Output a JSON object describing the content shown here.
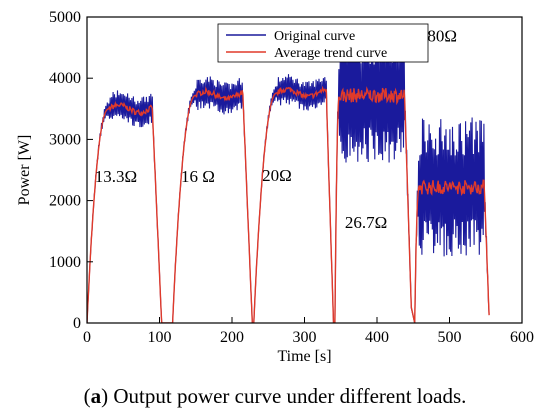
{
  "chart_data": {
    "type": "line",
    "title": "",
    "xlabel": "Time [s]",
    "ylabel": "Power [W]",
    "xlim": [
      0,
      600
    ],
    "ylim": [
      0,
      5000
    ],
    "x_ticks": [
      0,
      100,
      200,
      300,
      400,
      500,
      600
    ],
    "y_ticks": [
      0,
      1000,
      2000,
      3000,
      4000,
      5000
    ],
    "grid": false,
    "legend_position": "top-center",
    "series": [
      {
        "name": "Original curve",
        "color": "#1a1a9c"
      },
      {
        "name": "Average trend curve",
        "color": "#e03a2a"
      }
    ],
    "segments": [
      {
        "load": "13.3Ω",
        "start": 0,
        "rise_end": 30,
        "plateau_end": 90,
        "end": 103,
        "level": 3500,
        "amplitude": 280
      },
      {
        "load": "16 Ω",
        "start": 118,
        "rise_end": 150,
        "plateau_end": 215,
        "end": 228,
        "level": 3720,
        "amplitude": 300
      },
      {
        "load": "20Ω",
        "start": 230,
        "rise_end": 262,
        "plateau_end": 330,
        "end": 340,
        "level": 3760,
        "amplitude": 280
      },
      {
        "load": "26.7Ω",
        "start": 342,
        "rise_end": 348,
        "plateau_end": 438,
        "end": 448,
        "level": 3720,
        "amplitude": 1100
      },
      {
        "load": "80Ω",
        "start": 452,
        "rise_end": 458,
        "plateau_end": 548,
        "end": 555,
        "level": 2220,
        "amplitude": 1150
      }
    ],
    "annotations": [
      {
        "text": "13.3Ω",
        "x": 40,
        "y": 2300
      },
      {
        "text": "16 Ω",
        "x": 153,
        "y": 2300
      },
      {
        "text": "20Ω",
        "x": 262,
        "y": 2320
      },
      {
        "text": "26.7Ω",
        "x": 385,
        "y": 1550
      },
      {
        "text": "80Ω",
        "x": 490,
        "y": 4600
      }
    ]
  },
  "caption": {
    "label": "a",
    "text": "Output power curve under different loads."
  }
}
